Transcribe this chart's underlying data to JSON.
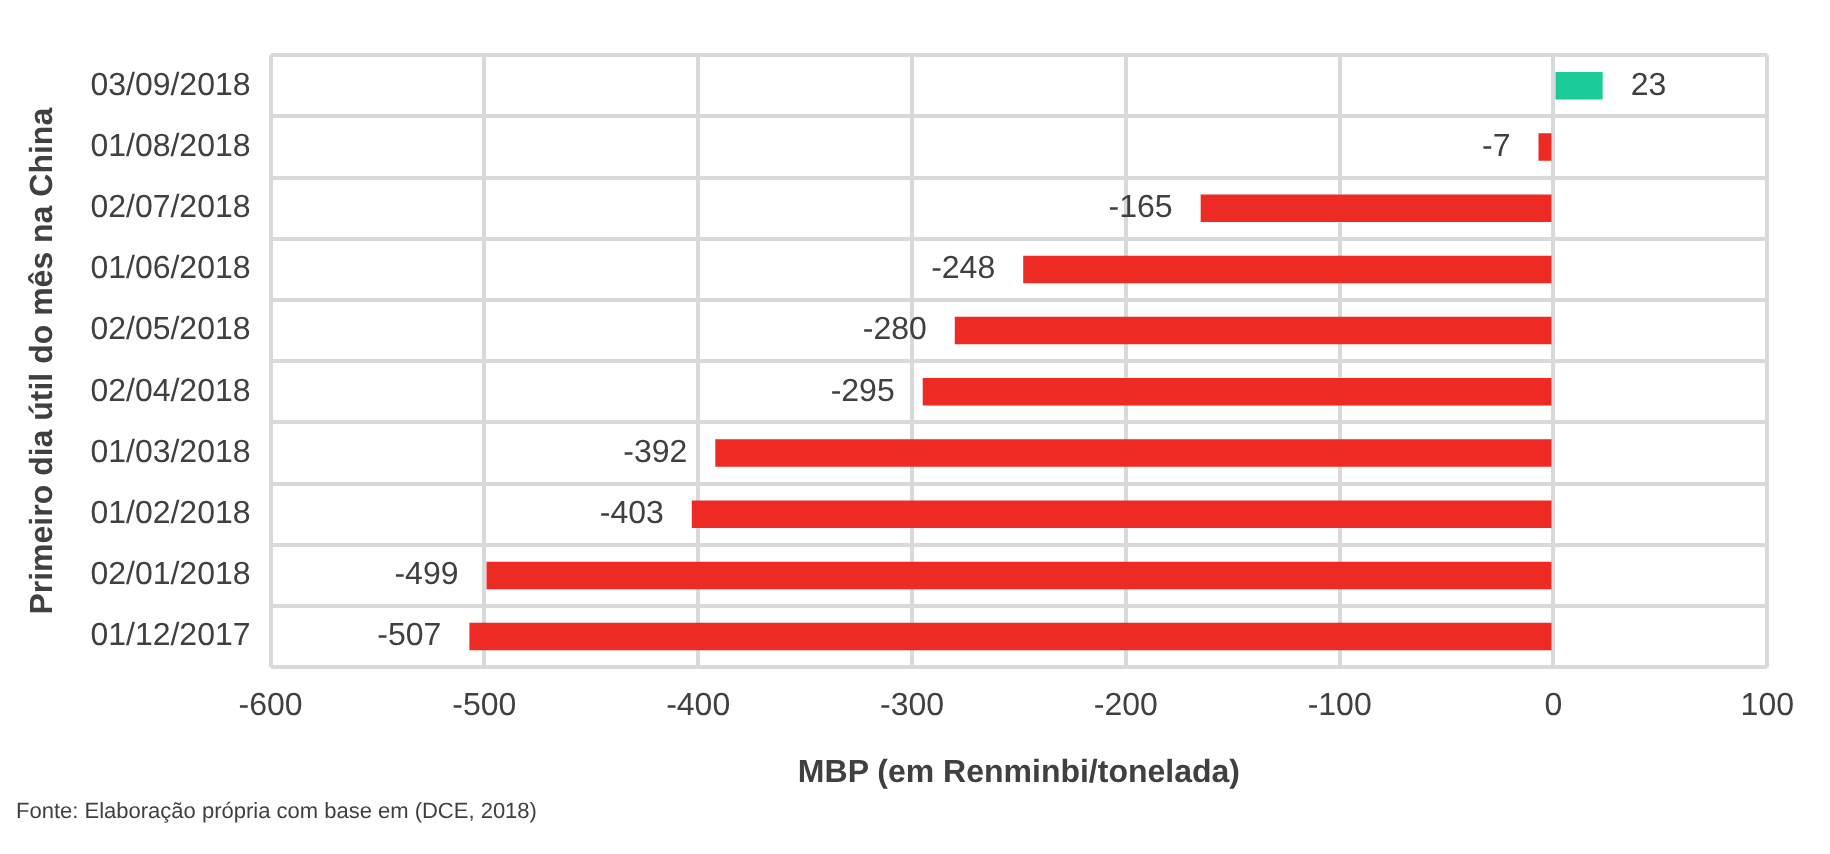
{
  "chart_data": {
    "type": "bar",
    "orientation": "horizontal",
    "xlabel": "MBP (em Renminbi/tonelada)",
    "ylabel": "Primeiro dia útil do mês na China",
    "categories": [
      "03/09/2018",
      "01/08/2018",
      "02/07/2018",
      "01/06/2018",
      "02/05/2018",
      "02/04/2018",
      "01/03/2018",
      "01/02/2018",
      "02/01/2018",
      "01/12/2017"
    ],
    "values": [
      23,
      -7,
      -165,
      -248,
      -280,
      -295,
      -392,
      -403,
      -499,
      -507
    ],
    "colors": [
      "#1ccc98",
      "#ee2a24",
      "#ee2a24",
      "#ee2a24",
      "#ee2a24",
      "#ee2a24",
      "#ee2a24",
      "#ee2a24",
      "#ee2a24",
      "#ee2a24"
    ],
    "xlim": [
      -600,
      100
    ],
    "xticks": [
      -600,
      -500,
      -400,
      -300,
      -200,
      -100,
      0,
      100
    ],
    "grid": true,
    "data_labels": true,
    "annotations": [
      "Fonte: Elaboração própria com base em (DCE, 2018)"
    ]
  }
}
